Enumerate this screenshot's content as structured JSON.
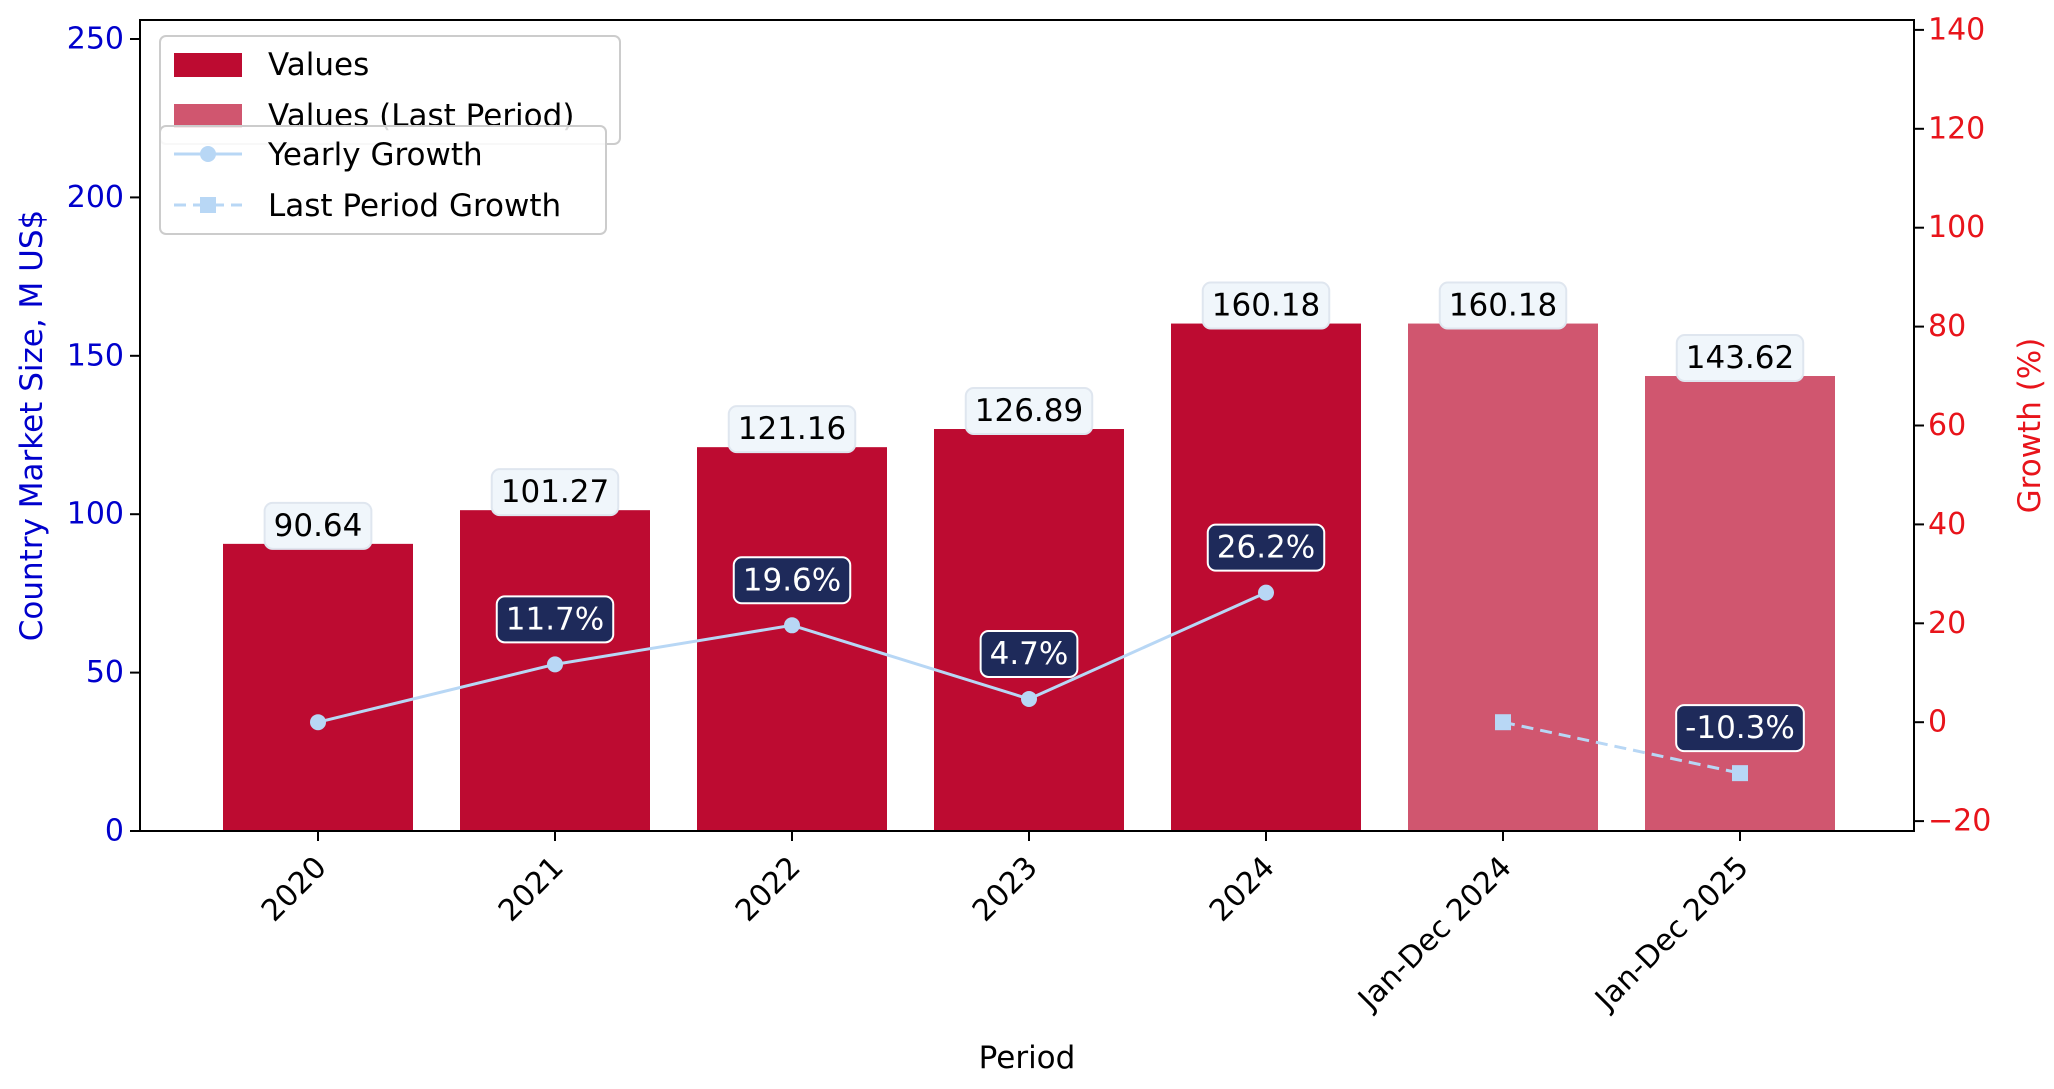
{
  "chart_data": {
    "type": "bar",
    "categories": [
      "2020",
      "2021",
      "2022",
      "2023",
      "2024",
      "Jan-Dec 2024",
      "Jan-Dec 2025"
    ],
    "xlabel": "Period",
    "ylabel": "Country Market Size, M US$",
    "y2label": "Growth (%)",
    "ylim": [
      0,
      256
    ],
    "y2lim": [
      -22,
      142
    ],
    "yticks": [
      0,
      50,
      100,
      150,
      200,
      250
    ],
    "y2ticks": [
      -20,
      0,
      20,
      40,
      60,
      80,
      100,
      120,
      140
    ],
    "grid": false,
    "legend_position": "top-left",
    "series": [
      {
        "name": "Values",
        "kind": "bar",
        "color": "#bd0b31",
        "values": [
          90.64,
          101.27,
          121.16,
          126.89,
          160.18,
          null,
          null
        ],
        "labels": [
          "90.64",
          "101.27",
          "121.16",
          "126.89",
          "160.18",
          "",
          ""
        ]
      },
      {
        "name": "Values (Last Period)",
        "kind": "bar",
        "color": "#d0566f",
        "values": [
          null,
          null,
          null,
          null,
          null,
          160.18,
          143.62
        ],
        "labels": [
          "",
          "",
          "",
          "",
          "",
          "160.18",
          "143.62"
        ]
      },
      {
        "name": "Yearly Growth",
        "kind": "line",
        "axis": "right",
        "color": "#b8d7f5",
        "marker": "circle",
        "style": "solid",
        "values": [
          0,
          11.7,
          19.6,
          4.7,
          26.2,
          null,
          null
        ],
        "labels": [
          "",
          "11.7%",
          "19.6%",
          "4.7%",
          "26.2%",
          "",
          ""
        ]
      },
      {
        "name": "Last Period Growth",
        "kind": "line",
        "axis": "right",
        "color": "#b8d7f5",
        "marker": "square",
        "style": "dashed",
        "values": [
          null,
          null,
          null,
          null,
          null,
          0,
          -10.3
        ],
        "labels": [
          "",
          "",
          "",
          "",
          "",
          "",
          "-10.3%"
        ]
      }
    ],
    "colors": {
      "left_axis": "#0000cc",
      "right_axis": "#e8141b",
      "value_label_bg": "#f0f6fb",
      "growth_label_bg": "#1e2a5a"
    }
  }
}
